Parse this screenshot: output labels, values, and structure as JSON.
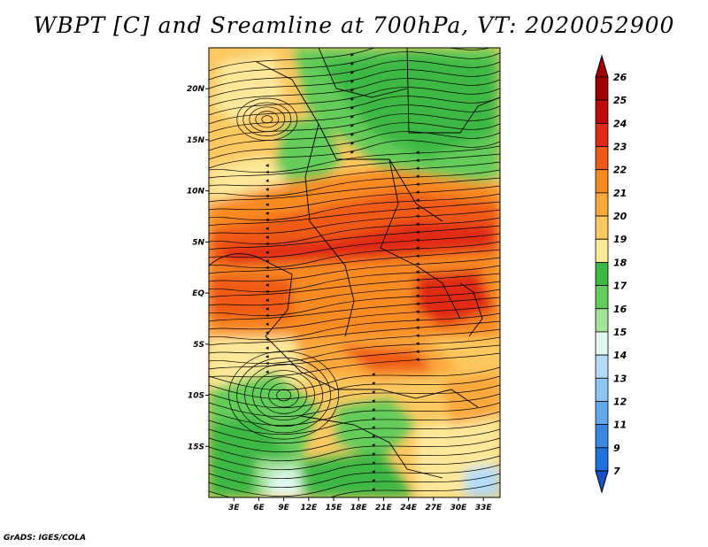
{
  "title": "WBPT [C] and Sreamline at 700hPa, VT: 2020052900",
  "footer": "GrADS: IGES/COLA",
  "map": {
    "lon_range": [
      0,
      35
    ],
    "lat_range": [
      -20,
      24
    ],
    "lat_ticks": [
      {
        "value": 20,
        "label": "20N"
      },
      {
        "value": 15,
        "label": "15N"
      },
      {
        "value": 10,
        "label": "10N"
      },
      {
        "value": 5,
        "label": "5N"
      },
      {
        "value": 0,
        "label": "EQ"
      },
      {
        "value": -5,
        "label": "5S"
      },
      {
        "value": -10,
        "label": "10S"
      },
      {
        "value": -15,
        "label": "15S"
      }
    ],
    "lon_ticks": [
      {
        "value": 3,
        "label": "3E"
      },
      {
        "value": 6,
        "label": "6E"
      },
      {
        "value": 9,
        "label": "9E"
      },
      {
        "value": 12,
        "label": "12E"
      },
      {
        "value": 15,
        "label": "15E"
      },
      {
        "value": 18,
        "label": "18E"
      },
      {
        "value": 21,
        "label": "21E"
      },
      {
        "value": 24,
        "label": "24E"
      },
      {
        "value": 27,
        "label": "27E"
      },
      {
        "value": 30,
        "label": "30E"
      },
      {
        "value": 33,
        "label": "33E"
      }
    ]
  },
  "colorbar": {
    "levels": [
      {
        "label": "26",
        "color": "#a00000"
      },
      {
        "label": "25",
        "color": "#c00a0a"
      },
      {
        "label": "24",
        "color": "#e02a18"
      },
      {
        "label": "23",
        "color": "#f05a18"
      },
      {
        "label": "22",
        "color": "#f88a20"
      },
      {
        "label": "21",
        "color": "#faa83a"
      },
      {
        "label": "20",
        "color": "#fcc860"
      },
      {
        "label": "19",
        "color": "#fde89a"
      },
      {
        "label": "18",
        "color": "#3cb844"
      },
      {
        "label": "17",
        "color": "#64cc5a"
      },
      {
        "label": "16",
        "color": "#a4e49a"
      },
      {
        "label": "15",
        "color": "#e0f8f0"
      },
      {
        "label": "14",
        "color": "#b4dcf8"
      },
      {
        "label": "13",
        "color": "#8cc4f4"
      },
      {
        "label": "12",
        "color": "#64a8ec"
      },
      {
        "label": "11",
        "color": "#3c88e0"
      },
      {
        "label": "9",
        "color": "#2070dc"
      },
      {
        "label": "7",
        "color": "#1450c8"
      }
    ]
  }
}
